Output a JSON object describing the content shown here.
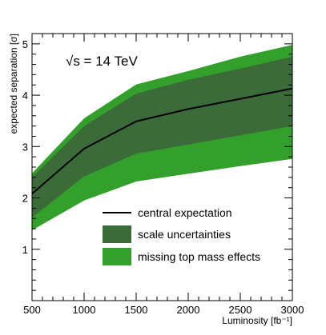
{
  "chart_data": {
    "type": "area",
    "annotation": "√s = 14 TeV",
    "xlabel": "Luminosity [fb⁻¹]",
    "ylabel": "expected separation [σ]",
    "xlim": [
      500,
      3000
    ],
    "ylim": [
      0,
      5.2
    ],
    "x_ticks": [
      "500",
      "1000",
      "1500",
      "2000",
      "2500",
      "3000"
    ],
    "y_ticks": [
      "1",
      "2",
      "3",
      "4",
      "5"
    ],
    "grid": false,
    "legend_position": "lower-right",
    "x": [
      500,
      1000,
      1500,
      2000,
      2500,
      3000
    ],
    "series": [
      {
        "name": "central expectation",
        "kind": "line",
        "color": "#000000",
        "values": [
          2.08,
          2.96,
          3.49,
          3.73,
          3.93,
          4.13
        ]
      },
      {
        "name": "scale uncertainties",
        "kind": "band",
        "color": "#3a6b38",
        "lower": [
          1.62,
          2.42,
          2.86,
          3.04,
          3.22,
          3.4
        ],
        "upper": [
          2.4,
          3.4,
          4.03,
          4.3,
          4.52,
          4.75
        ]
      },
      {
        "name": "missing top mass effects",
        "kind": "band",
        "color": "#33a02c",
        "lower": [
          1.37,
          1.95,
          2.32,
          2.47,
          2.62,
          2.76
        ],
        "upper": [
          2.48,
          3.55,
          4.21,
          4.47,
          4.75,
          4.98
        ]
      }
    ]
  }
}
